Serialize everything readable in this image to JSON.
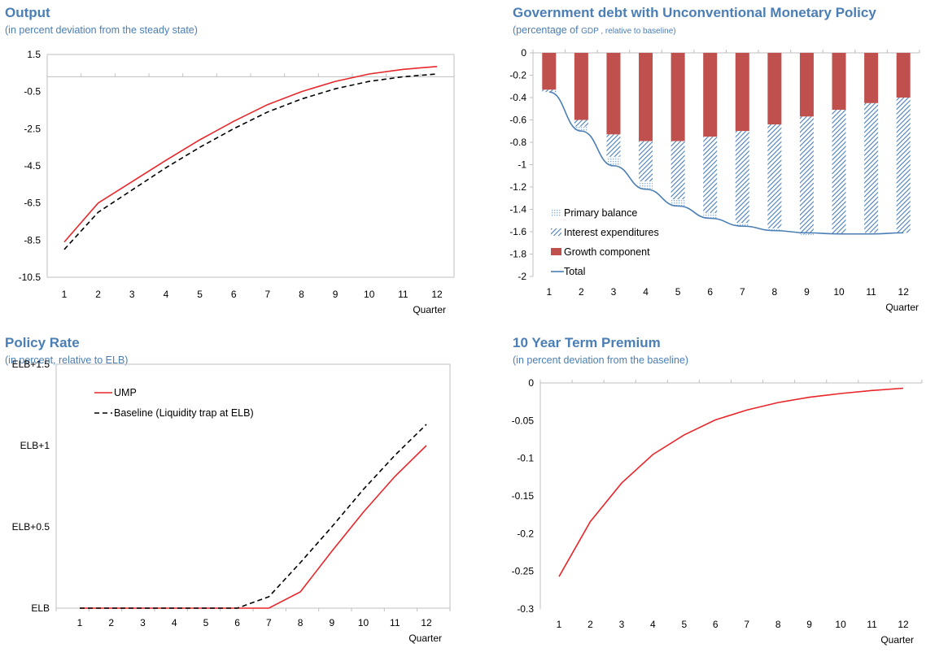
{
  "chart_data": [
    {
      "id": "output",
      "type": "line",
      "title": "Output",
      "subtitle": "(in percent deviation from the steady state)",
      "xlabel": "Quarter",
      "categories": [
        "1",
        "2",
        "3",
        "4",
        "5",
        "6",
        "7",
        "8",
        "9",
        "10",
        "11",
        "12"
      ],
      "ylim": [
        -10.5,
        1.5
      ],
      "yticks": [
        "1.5",
        "-0.5",
        "-2.5",
        "-4.5",
        "-6.5",
        "-8.5",
        "-10.5"
      ],
      "ytick_values": [
        1.5,
        -0.5,
        -2.5,
        -4.5,
        -6.5,
        -8.5,
        -10.5
      ],
      "series": [
        {
          "key": "a",
          "color": "#e8262a",
          "dash": "",
          "values": [
            -8.6,
            -6.5,
            -5.35,
            -4.2,
            -3.1,
            -2.1,
            -1.2,
            -0.5,
            0.05,
            0.45,
            0.7,
            0.85
          ]
        },
        {
          "key": "b",
          "color": "#000000",
          "dash": "6,4",
          "values": [
            -9.0,
            -7.0,
            -5.8,
            -4.6,
            -3.5,
            -2.5,
            -1.6,
            -0.9,
            -0.35,
            0.05,
            0.3,
            0.45
          ]
        }
      ]
    },
    {
      "id": "debt",
      "type": "bar",
      "title": "Government debt with Unconventional Monetary Policy",
      "subtitle": "(percentage of",
      "subtitle_small": "GDP , relative to baseline)",
      "xlabel": "Quarter",
      "categories": [
        "1",
        "2",
        "3",
        "4",
        "5",
        "6",
        "7",
        "8",
        "9",
        "10",
        "11",
        "12"
      ],
      "ylim": [
        -2,
        0
      ],
      "yticks": [
        "0",
        "-0.2",
        "-0.4",
        "-0.6",
        "-0.8",
        "-1",
        "-1.2",
        "-1.4",
        "-1.6",
        "-1.8",
        "-2"
      ],
      "ytick_values": [
        0,
        -0.2,
        -0.4,
        -0.6,
        -0.8,
        -1,
        -1.2,
        -1.4,
        -1.6,
        -1.8,
        -2
      ],
      "legend": [
        "Primary balance",
        "Interest expenditures",
        "Growth component",
        "Total"
      ],
      "colors": {
        "growth": "#c0504d",
        "interest": "#4a7eb5",
        "primary": "#8fb4dc",
        "total": "#4a7eb5"
      },
      "series": [
        {
          "name": "Growth component",
          "values": [
            -0.33,
            -0.6,
            -0.73,
            -0.79,
            -0.79,
            -0.75,
            -0.7,
            -0.64,
            -0.57,
            -0.51,
            -0.45,
            -0.4
          ]
        },
        {
          "name": "Interest expenditures",
          "values": [
            -0.02,
            -0.06,
            -0.2,
            -0.36,
            -0.52,
            -0.68,
            -0.82,
            -0.93,
            -1.05,
            -1.11,
            -1.16,
            -1.21
          ]
        },
        {
          "name": "Primary balance",
          "values": [
            0,
            -0.04,
            -0.08,
            -0.07,
            -0.06,
            -0.05,
            -0.03,
            -0.02,
            -0.01,
            0,
            0,
            0
          ]
        },
        {
          "name": "Total",
          "values": [
            -0.35,
            -0.7,
            -1.01,
            -1.22,
            -1.37,
            -1.48,
            -1.55,
            -1.59,
            -1.61,
            -1.62,
            -1.62,
            -1.61
          ]
        }
      ]
    },
    {
      "id": "policy",
      "type": "line",
      "title": "Policy Rate",
      "subtitle": "(in percent, relative to ELB)",
      "xlabel": "Quarter",
      "categories": [
        "1",
        "2",
        "3",
        "4",
        "5",
        "6",
        "7",
        "8",
        "9",
        "10",
        "11",
        "12"
      ],
      "ylim": [
        0,
        1.5
      ],
      "yticks": [
        "ELB+1.5",
        "ELB+1",
        "ELB+0.5",
        "ELB"
      ],
      "ytick_values": [
        1.5,
        1.0,
        0.5,
        0
      ],
      "series": [
        {
          "name": "UMP",
          "color": "#e8262a",
          "dash": "",
          "values": [
            0,
            0,
            0,
            0,
            0,
            0,
            0,
            0.1,
            0.35,
            0.59,
            0.81,
            1.0
          ]
        },
        {
          "name": "Baseline (Liquidity trap at ELB)",
          "color": "#000000",
          "dash": "6,4",
          "values": [
            0,
            0,
            0,
            0,
            0,
            0,
            0.07,
            0.28,
            0.5,
            0.73,
            0.94,
            1.13
          ]
        }
      ]
    },
    {
      "id": "term",
      "type": "line",
      "title": "10 Year Term Premium",
      "subtitle": "(in percent deviation from the baseline)",
      "xlabel": "Quarter",
      "categories": [
        "1",
        "2",
        "3",
        "4",
        "5",
        "6",
        "7",
        "8",
        "9",
        "10",
        "11",
        "12"
      ],
      "ylim": [
        -0.3,
        0
      ],
      "yticks": [
        "0",
        "-0.05",
        "-0.1",
        "-0.15",
        "-0.2",
        "-0.25",
        "-0.3"
      ],
      "ytick_values": [
        0,
        -0.05,
        -0.1,
        -0.15,
        -0.2,
        -0.25,
        -0.3
      ],
      "series": [
        {
          "key": "a",
          "color": "#e8262a",
          "dash": "",
          "values": [
            -0.257,
            -0.184,
            -0.133,
            -0.095,
            -0.069,
            -0.049,
            -0.036,
            -0.026,
            -0.019,
            -0.014,
            -0.01,
            -0.007
          ]
        }
      ]
    }
  ]
}
